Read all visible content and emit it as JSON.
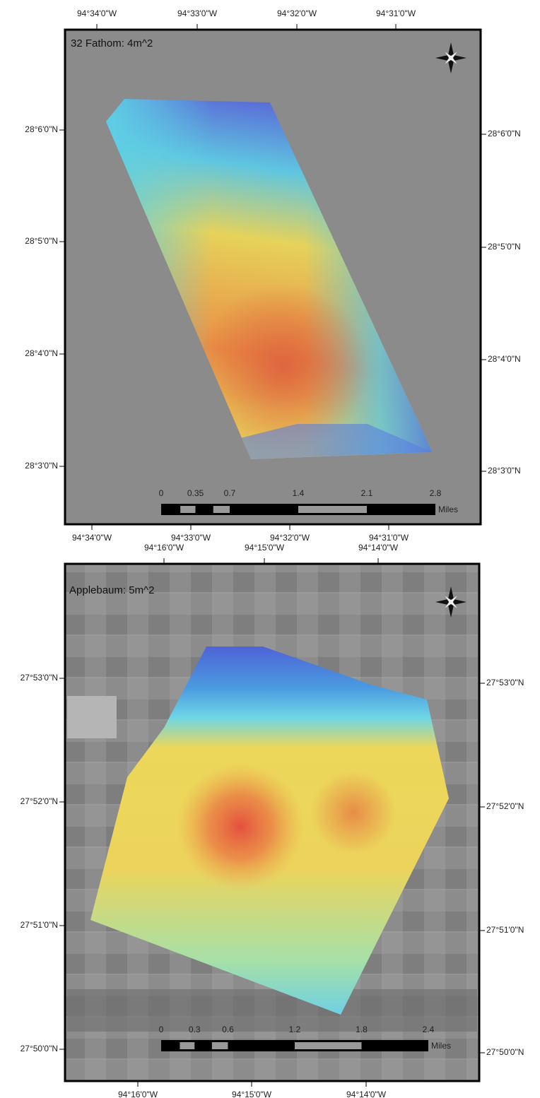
{
  "maps": [
    {
      "title": "32 Fathom: 4m^2",
      "top_labels": [
        "94°34'0\"W",
        "94°33'0\"W",
        "94°32'0\"W",
        "94°31'0\"W"
      ],
      "bottom_labels": [
        "94°34'0\"W",
        "94°33'0\"W",
        "94°32'0\"W",
        "94°31'0\"W"
      ],
      "left_labels": [
        "28°6'0\"N",
        "28°5'0\"N",
        "28°4'0\"N",
        "28°3'0\"N"
      ],
      "right_labels": [
        "28°6'0\"N",
        "28°5'0\"N",
        "28°4'0\"N",
        "28°3'0\"N"
      ],
      "scale_labels": [
        "0",
        "0.35",
        "0.7",
        "1.4",
        "2.1",
        "2.8"
      ],
      "scale_unit": "Miles"
    },
    {
      "title": "Applebaum: 5m^2",
      "top_labels": [
        "94°16'0\"W",
        "94°15'0\"W",
        "94°14'0\"W"
      ],
      "bottom_labels": [
        "94°16'0\"W",
        "94°15'0\"W",
        "94°14'0\"W"
      ],
      "left_labels": [
        "27°53'0\"N",
        "27°52'0\"N",
        "27°51'0\"N",
        "27°50'0\"N"
      ],
      "right_labels": [
        "27°53'0\"N",
        "27°52'0\"N",
        "27°51'0\"N",
        "27°50'0\"N"
      ],
      "scale_labels": [
        "0",
        "0.3",
        "0.6",
        "1.2",
        "1.8",
        "2.4"
      ],
      "scale_unit": "Miles"
    }
  ]
}
